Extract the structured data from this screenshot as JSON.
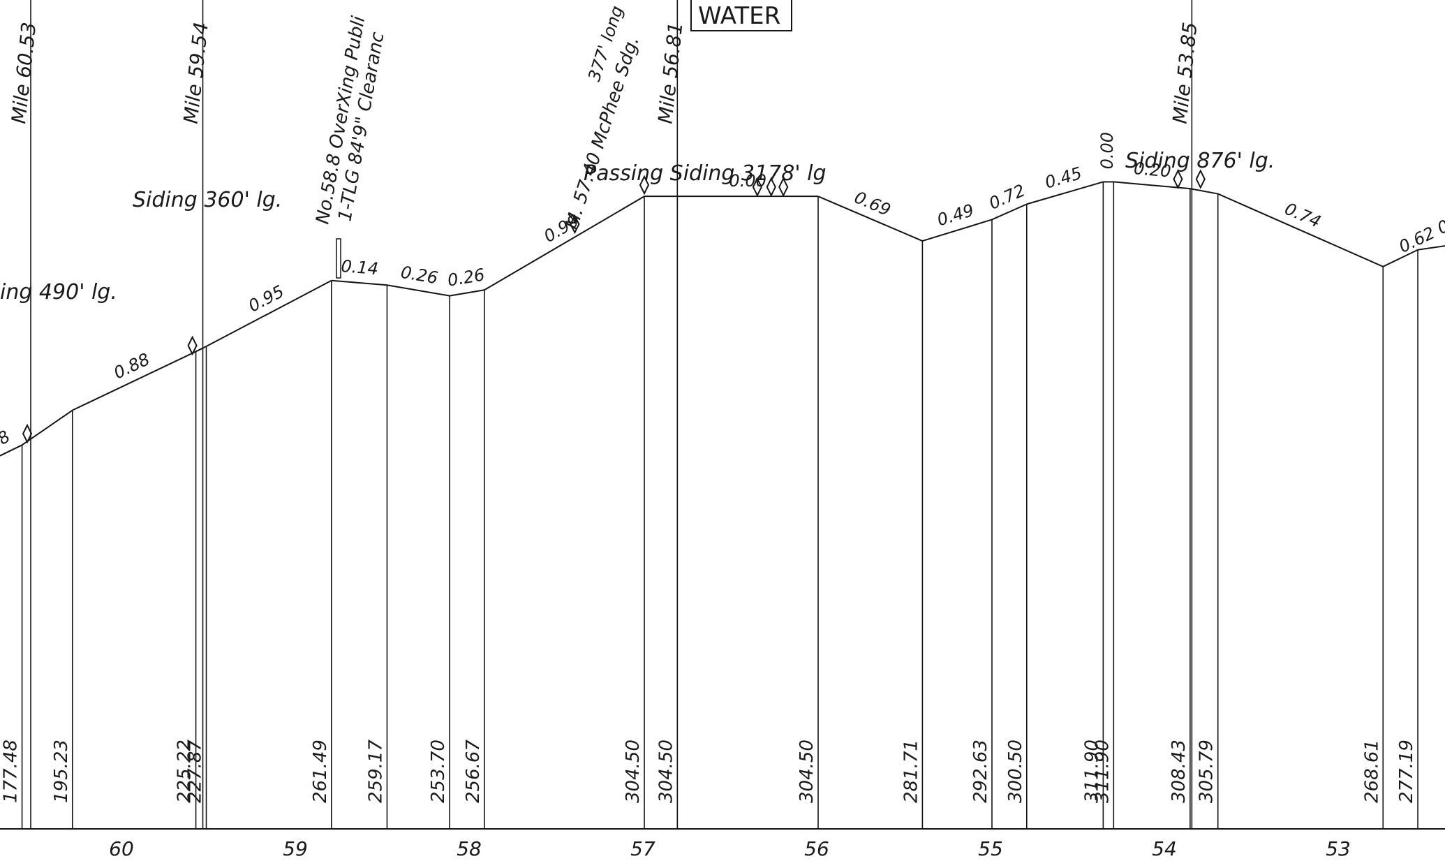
{
  "water_label": "WATER",
  "track_profile": [
    {
      "mark": "8",
      "x": 60.58,
      "elev": 177.48
    },
    {
      "mark": "",
      "x": 60.29,
      "elev": 195.23
    },
    {
      "mark": "0.88",
      "x": 59.58,
      "elev": 225.22
    },
    {
      "mark": "",
      "x": 59.52,
      "elev": 227.87
    },
    {
      "mark": "0.95",
      "x": 58.8,
      "elev": 261.49
    },
    {
      "mark": "0.14",
      "x": 58.48,
      "elev": 259.17
    },
    {
      "mark": "0.26",
      "x": 58.12,
      "elev": 253.7
    },
    {
      "mark": "0.26",
      "x": 57.92,
      "elev": 256.67
    },
    {
      "mark": "0.99",
      "x": 57.0,
      "elev": 304.5
    },
    {
      "mark": "",
      "x": 56.81,
      "elev": 304.5
    },
    {
      "mark": "0.00",
      "x": 56.0,
      "elev": 304.5
    },
    {
      "mark": "0.69",
      "x": 55.4,
      "elev": 281.71
    },
    {
      "mark": "0.49",
      "x": 55.0,
      "elev": 292.63
    },
    {
      "mark": "0.72",
      "x": 54.8,
      "elev": 300.5
    },
    {
      "mark": "0.45",
      "x": 54.36,
      "elev": 311.9
    },
    {
      "mark": "0.00",
      "x": 54.3,
      "elev": 311.9
    },
    {
      "mark": "0.20",
      "x": 53.86,
      "elev": 308.43
    },
    {
      "mark": "",
      "x": 53.7,
      "elev": 305.79
    },
    {
      "mark": "0.74",
      "x": 52.75,
      "elev": 268.61
    },
    {
      "mark": "0.62 0",
      "x": 52.55,
      "elev": 277.19
    }
  ],
  "elevations": [
    "177.48",
    "195.23",
    "225.22",
    "227.87",
    "261.49",
    "259.17",
    "253.70",
    "256.67",
    "304.50",
    "304.50",
    "304.50",
    "281.71",
    "292.63",
    "300.50",
    "311.90",
    "311.90",
    "308.43",
    "305.79",
    "268.61",
    "277.19"
  ],
  "grades": [
    "8",
    "0.88",
    "0.95",
    "0.14",
    "0.26",
    "0.26",
    "0.99",
    "0.00",
    "0.69",
    "0.49",
    "0.72",
    "0.45",
    "0.00",
    "0.20",
    "0.74",
    "0.62 0"
  ],
  "mileposts": [
    {
      "label": "Mile 60.53",
      "x": 60.53
    },
    {
      "label": "Mile 59.54",
      "x": 59.54
    },
    {
      "label": "Mile 56.81",
      "x": 56.81
    },
    {
      "label": "Mile 53.85",
      "x": 53.85
    }
  ],
  "axis_ticks": [
    {
      "label": "60",
      "x": 60
    },
    {
      "label": "59",
      "x": 59
    },
    {
      "label": "58",
      "x": 58
    },
    {
      "label": "57",
      "x": 57
    },
    {
      "label": "56",
      "x": 56
    },
    {
      "label": "55",
      "x": 55
    },
    {
      "label": "54",
      "x": 54
    },
    {
      "label": "53",
      "x": 53
    }
  ],
  "annotations": {
    "siding_left": "ing 490' lg.",
    "siding_360": "Siding 360' lg.",
    "overcrossing_1": "No.58.8 OverXing Publi",
    "overcrossing_2": "1-TLG 84'9\" Clearanc",
    "mcphee_1": "M. 57.40 McPhee Sdg.",
    "mcphee_2": "377' long",
    "passing_siding": "Passing Siding 3178' lg",
    "siding_876": "Siding 876' lg."
  },
  "switches": [
    {
      "x": 60.55,
      "elev": 179
    },
    {
      "x": 59.6,
      "elev": 224
    },
    {
      "x": 57.4,
      "elev": 286
    },
    {
      "x": 57.0,
      "elev": 306
    },
    {
      "x": 56.35,
      "elev": 305
    },
    {
      "x": 56.27,
      "elev": 305
    },
    {
      "x": 56.2,
      "elev": 305
    },
    {
      "x": 53.93,
      "elev": 309
    },
    {
      "x": 53.8,
      "elev": 309
    }
  ]
}
